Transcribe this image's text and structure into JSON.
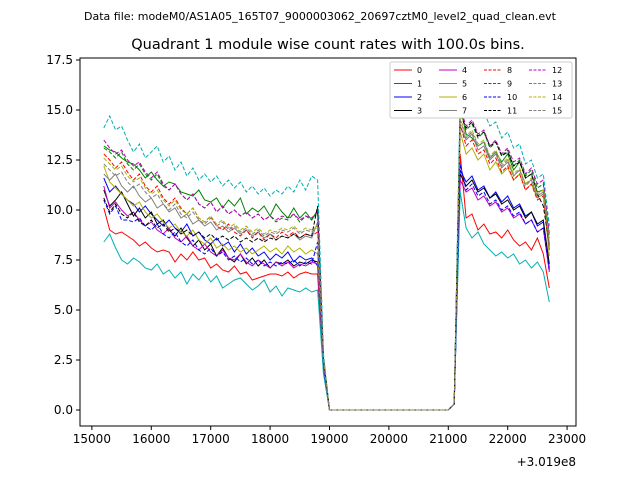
{
  "suptitle": "Data file: modeM0/AS1A05_165T07_9000003062_20697cztM0_level2_quad_clean.evt",
  "chart_data": {
    "type": "line",
    "title": "Quadrant 1 module wise count rates with 100.0s bins.",
    "xlabel": "",
    "ylabel": "",
    "x_offset_label": "+3.019e8",
    "xlim": [
      14800,
      23150
    ],
    "ylim": [
      -0.8,
      17.6
    ],
    "xticks": [
      15000,
      16000,
      17000,
      18000,
      19000,
      20000,
      21000,
      22000,
      23000
    ],
    "xtick_labels": [
      "15000",
      "16000",
      "17000",
      "18000",
      "19000",
      "20000",
      "21000",
      "22000",
      "23000"
    ],
    "yticks": [
      0.0,
      2.5,
      5.0,
      7.5,
      10.0,
      12.5,
      15.0,
      17.5
    ],
    "ytick_labels": [
      "0.0",
      "2.5",
      "5.0",
      "7.5",
      "10.0",
      "12.5",
      "15.0",
      "17.5"
    ],
    "legend_position": "upper-right",
    "segments": {
      "seg1": {
        "x_start": 15200,
        "x_end": 18800,
        "step": 100
      },
      "drop": [
        18900,
        19000
      ],
      "gap": [
        19000,
        21000
      ],
      "rise": [
        21000,
        21100
      ],
      "seg2": {
        "x_start": 21200,
        "x_end": 22700,
        "step": 100
      }
    },
    "series": [
      {
        "name": "0",
        "color": "#ff0000",
        "dash": false,
        "level1": [
          10.1,
          9.0,
          8.8,
          8.9,
          8.7,
          8.5,
          8.2,
          8.4,
          8.1,
          7.9,
          8.0,
          7.9,
          7.4,
          7.8,
          7.5,
          7.9,
          7.5,
          7.6,
          7.1,
          7.3,
          7.0,
          6.9,
          7.2,
          6.8,
          6.9,
          6.5,
          6.6,
          6.7,
          6.8,
          6.8,
          6.7,
          6.9,
          6.6,
          6.8,
          6.9,
          6.8,
          6.8
        ],
        "drop_val": 2.0,
        "level2": [
          12.8,
          9.6,
          9.8,
          9.0,
          9.3,
          8.8,
          8.9,
          8.6,
          9.0,
          8.5,
          8.2,
          8.4,
          8.0,
          8.6,
          7.8,
          6.1
        ]
      },
      {
        "name": "1",
        "color": "#008000",
        "dash": false,
        "level1": [
          13.2,
          13.0,
          12.9,
          12.6,
          12.4,
          12.3,
          12.0,
          11.6,
          11.9,
          11.5,
          11.2,
          11.4,
          11.3,
          10.9,
          10.8,
          10.7,
          11.0,
          10.5,
          10.4,
          10.6,
          10.1,
          10.5,
          10.2,
          10.6,
          9.8,
          10.1,
          9.9,
          10.2,
          9.7,
          10.3,
          9.9,
          9.6,
          10.1,
          9.6,
          9.9,
          9.5,
          10.0
        ],
        "drop_val": 2.6,
        "level2": [
          15.2,
          13.8,
          13.6,
          13.2,
          13.4,
          12.6,
          12.9,
          12.4,
          12.8,
          12.0,
          12.4,
          11.6,
          11.8,
          10.9,
          11.0,
          8.0
        ]
      },
      {
        "name": "2",
        "color": "#0000ff",
        "dash": false,
        "level1": [
          11.6,
          10.9,
          11.2,
          10.8,
          10.5,
          10.3,
          9.9,
          10.2,
          9.8,
          9.5,
          9.2,
          9.5,
          9.1,
          8.9,
          9.3,
          8.7,
          8.9,
          8.5,
          8.3,
          8.6,
          8.2,
          8.4,
          7.9,
          8.3,
          7.8,
          8.1,
          7.7,
          7.9,
          7.5,
          7.8,
          7.6,
          7.9,
          7.4,
          7.7,
          7.5,
          7.6,
          7.2
        ],
        "drop_val": 2.3,
        "level2": [
          12.0,
          11.4,
          11.7,
          11.0,
          11.2,
          10.6,
          10.9,
          10.4,
          10.7,
          10.1,
          10.3,
          9.7,
          9.9,
          9.2,
          9.4,
          7.1
        ]
      },
      {
        "name": "3",
        "color": "#000000",
        "dash": false,
        "level1": [
          11.0,
          10.2,
          10.5,
          10.9,
          10.3,
          9.7,
          10.1,
          9.6,
          9.9,
          9.3,
          9.5,
          9.0,
          8.7,
          9.1,
          8.6,
          8.2,
          8.5,
          8.0,
          8.3,
          7.7,
          8.1,
          7.6,
          7.4,
          7.8,
          7.3,
          7.6,
          7.2,
          7.5,
          7.1,
          7.4,
          7.3,
          7.5,
          7.2,
          7.4,
          7.3,
          7.5,
          7.4
        ],
        "drop_val": 2.2,
        "level2": [
          11.8,
          11.2,
          11.5,
          10.9,
          11.1,
          10.6,
          10.8,
          10.3,
          10.5,
          10.0,
          10.2,
          9.6,
          9.9,
          9.3,
          9.5,
          7.3
        ]
      },
      {
        "name": "4",
        "color": "#c000c0",
        "dash": false,
        "level1": [
          11.2,
          10.1,
          10.4,
          10.0,
          9.7,
          9.9,
          9.5,
          9.2,
          9.4,
          9.0,
          8.8,
          9.1,
          8.6,
          8.4,
          8.7,
          8.2,
          8.0,
          8.3,
          7.9,
          7.7,
          8.0,
          7.6,
          7.5,
          7.8,
          7.4,
          7.2,
          7.5,
          7.3,
          7.1,
          7.4,
          7.2,
          7.4,
          7.1,
          7.3,
          7.2,
          7.4,
          7.3
        ],
        "drop_val": 2.2,
        "level2": [
          11.5,
          10.9,
          11.1,
          10.5,
          10.7,
          10.2,
          10.4,
          9.9,
          10.1,
          9.6,
          9.8,
          9.3,
          9.5,
          8.9,
          9.1,
          6.9
        ]
      },
      {
        "name": "5",
        "color": "#00b0b0",
        "dash": false,
        "level1": [
          8.4,
          8.8,
          8.1,
          7.5,
          7.3,
          7.6,
          7.4,
          7.1,
          7.0,
          7.3,
          6.8,
          7.0,
          6.6,
          6.9,
          6.3,
          6.8,
          6.5,
          6.9,
          6.4,
          6.7,
          6.1,
          6.3,
          6.5,
          6.6,
          6.3,
          6.0,
          6.2,
          6.5,
          5.9,
          6.2,
          5.7,
          6.1,
          6.0,
          5.9,
          6.1,
          5.9,
          6.0
        ],
        "drop_val": 1.8,
        "level2": [
          10.9,
          9.1,
          8.6,
          8.9,
          8.3,
          8.0,
          7.7,
          7.9,
          7.6,
          7.8,
          7.3,
          7.5,
          7.1,
          7.4,
          6.9,
          5.4
        ]
      },
      {
        "name": "6",
        "color": "#b0b000",
        "dash": false,
        "level1": [
          12.2,
          11.4,
          11.1,
          10.8,
          10.5,
          10.2,
          10.4,
          9.9,
          9.6,
          9.8,
          9.4,
          9.1,
          9.3,
          8.9,
          8.7,
          9.0,
          8.5,
          8.3,
          8.6,
          8.1,
          8.3,
          8.0,
          8.2,
          7.9,
          8.1,
          7.8,
          8.0,
          8.2,
          7.9,
          8.1,
          7.8,
          8.2,
          7.9,
          8.1,
          7.8,
          8.0,
          7.8
        ],
        "drop_val": 2.4,
        "level2": [
          13.9,
          12.8,
          13.1,
          12.5,
          12.8,
          12.0,
          12.4,
          11.8,
          12.1,
          11.5,
          11.8,
          11.0,
          11.3,
          10.6,
          10.8,
          7.7
        ]
      },
      {
        "name": "7",
        "color": "#808080",
        "dash": false,
        "level1": [
          11.8,
          11.5,
          11.8,
          11.2,
          10.9,
          11.2,
          10.7,
          10.4,
          10.6,
          10.1,
          10.3,
          9.9,
          10.1,
          9.6,
          9.8,
          9.3,
          9.5,
          9.2,
          9.4,
          9.0,
          9.2,
          8.9,
          9.1,
          8.8,
          9.0,
          8.7,
          8.9,
          8.6,
          8.8,
          8.5,
          8.7,
          8.6,
          8.8,
          8.5,
          8.7,
          8.6,
          9.4
        ],
        "drop_val": 2.5,
        "level2": [
          14.2,
          13.5,
          13.8,
          13.0,
          13.2,
          12.5,
          12.8,
          12.1,
          12.4,
          11.7,
          12.0,
          11.3,
          11.5,
          10.7,
          10.9,
          8.1
        ]
      },
      {
        "name": "8",
        "color": "#ff0000",
        "dash": true,
        "level1": [
          12.8,
          12.5,
          12.1,
          12.4,
          11.9,
          11.5,
          11.8,
          11.2,
          10.9,
          11.2,
          10.6,
          10.3,
          10.6,
          10.1,
          9.8,
          10.1,
          9.6,
          9.4,
          9.7,
          9.2,
          9.0,
          9.3,
          8.9,
          8.7,
          9.0,
          8.6,
          8.9,
          8.5,
          8.8,
          8.6,
          8.9,
          8.7,
          8.9,
          8.6,
          8.8,
          8.7,
          8.9
        ],
        "drop_val": 2.5,
        "level2": [
          14.3,
          13.2,
          13.5,
          12.8,
          13.0,
          12.3,
          12.6,
          11.9,
          12.2,
          11.5,
          11.8,
          11.0,
          11.3,
          10.5,
          10.7,
          8.2
        ]
      },
      {
        "name": "9",
        "color": "#008000",
        "dash": true,
        "level1": [
          13.1,
          12.9,
          12.6,
          12.9,
          12.3,
          12.0,
          12.3,
          11.8,
          11.5,
          11.8,
          11.2,
          11.0,
          11.3,
          10.8,
          10.5,
          10.8,
          10.3,
          10.1,
          10.4,
          9.9,
          10.2,
          9.8,
          10.0,
          9.7,
          9.9,
          9.6,
          9.8,
          9.5,
          9.7,
          9.4,
          9.6,
          9.5,
          9.8,
          9.4,
          9.7,
          9.5,
          9.9
        ],
        "drop_val": 2.6,
        "level2": [
          15.0,
          14.0,
          14.3,
          13.6,
          13.9,
          13.1,
          13.4,
          12.7,
          13.0,
          12.2,
          12.5,
          11.7,
          12.0,
          11.1,
          11.3,
          8.6
        ]
      },
      {
        "name": "10",
        "color": "#0000ff",
        "dash": true,
        "level1": [
          10.5,
          9.8,
          10.2,
          9.5,
          9.5,
          9.4,
          9.6,
          9.2,
          9.0,
          9.3,
          8.8,
          8.6,
          8.9,
          8.4,
          8.2,
          8.5,
          8.0,
          7.8,
          8.1,
          7.7,
          7.9,
          7.5,
          7.7,
          7.4,
          7.6,
          7.3,
          7.5,
          7.2,
          7.4,
          7.2,
          7.4,
          7.3,
          7.5,
          7.2,
          7.4,
          7.3,
          8.4
        ],
        "drop_val": 2.2,
        "level2": [
          12.3,
          11.0,
          11.3,
          10.7,
          10.9,
          10.3,
          10.5,
          10.0,
          10.2,
          9.7,
          9.9,
          9.3,
          9.5,
          8.9,
          9.1,
          7.0
        ]
      },
      {
        "name": "11",
        "color": "#000000",
        "dash": true,
        "level1": [
          10.6,
          9.9,
          10.3,
          9.8,
          9.6,
          9.9,
          9.4,
          9.2,
          9.5,
          9.1,
          9.3,
          8.9,
          9.1,
          8.8,
          9.0,
          8.7,
          8.9,
          8.6,
          8.8,
          8.5,
          8.7,
          8.5,
          8.7,
          8.4,
          8.6,
          8.4,
          8.6,
          8.4,
          8.6,
          8.5,
          8.7,
          8.6,
          8.8,
          8.6,
          8.8,
          8.7,
          10.2
        ],
        "drop_val": 2.5,
        "level2": [
          14.8,
          14.1,
          14.4,
          13.7,
          13.9,
          13.2,
          13.4,
          12.7,
          12.9,
          12.2,
          12.4,
          11.6,
          11.8,
          10.8,
          10.2,
          8.3
        ]
      },
      {
        "name": "12",
        "color": "#c000c0",
        "dash": true,
        "level1": [
          13.5,
          13.1,
          12.8,
          13.0,
          12.5,
          12.2,
          12.4,
          11.9,
          11.6,
          11.9,
          11.3,
          11.0,
          11.3,
          10.8,
          10.5,
          10.8,
          10.3,
          10.1,
          10.4,
          9.9,
          10.2,
          9.8,
          10.0,
          9.7,
          9.9,
          9.6,
          9.8,
          9.5,
          9.7,
          9.5,
          9.7,
          9.6,
          9.8,
          9.5,
          9.7,
          9.6,
          9.9
        ],
        "drop_val": 2.6,
        "level2": [
          15.1,
          14.2,
          14.5,
          13.8,
          14.0,
          13.2,
          13.5,
          12.8,
          13.1,
          12.4,
          12.6,
          11.8,
          12.1,
          11.3,
          11.5,
          8.8
        ]
      },
      {
        "name": "13",
        "color": "#00b0b0",
        "dash": true,
        "level1": [
          14.1,
          14.7,
          14.0,
          14.2,
          13.5,
          12.9,
          13.3,
          12.6,
          12.9,
          13.2,
          12.4,
          12.7,
          12.0,
          12.4,
          11.7,
          12.1,
          11.5,
          11.8,
          11.4,
          11.7,
          11.2,
          11.5,
          11.1,
          11.4,
          10.9,
          11.2,
          10.8,
          11.1,
          10.7,
          11.0,
          10.8,
          11.2,
          10.9,
          11.5,
          11.0,
          11.7,
          11.5
        ],
        "drop_val": 2.8,
        "level2": [
          15.9,
          15.0,
          15.2,
          14.6,
          14.9,
          14.2,
          14.4,
          13.6,
          13.9,
          13.1,
          13.3,
          12.3,
          12.5,
          11.6,
          11.8,
          9.2
        ]
      },
      {
        "name": "14",
        "color": "#b0b000",
        "dash": true,
        "level1": [
          12.6,
          12.3,
          12.0,
          12.2,
          11.7,
          11.4,
          11.6,
          11.1,
          10.8,
          11.0,
          10.5,
          10.2,
          10.5,
          10.0,
          9.8,
          10.1,
          9.6,
          9.4,
          9.7,
          9.3,
          9.5,
          9.1,
          9.3,
          9.0,
          9.2,
          8.9,
          9.1,
          8.8,
          9.0,
          8.9,
          9.1,
          9.0,
          9.2,
          8.9,
          9.1,
          9.0,
          9.2
        ],
        "drop_val": 2.5,
        "level2": [
          14.6,
          13.7,
          14.0,
          13.3,
          13.5,
          12.7,
          13.0,
          12.3,
          12.6,
          11.8,
          12.1,
          11.3,
          11.6,
          10.8,
          11.0,
          8.4
        ]
      },
      {
        "name": "15",
        "color": "#808080",
        "dash": true,
        "level1": [
          12.3,
          12.0,
          11.7,
          11.9,
          11.4,
          11.1,
          11.3,
          10.9,
          10.6,
          10.8,
          10.3,
          10.0,
          10.3,
          9.8,
          9.6,
          9.9,
          9.5,
          9.3,
          9.6,
          9.2,
          9.4,
          9.0,
          9.2,
          8.9,
          9.1,
          8.8,
          9.0,
          8.7,
          8.9,
          8.8,
          9.0,
          8.9,
          9.1,
          8.8,
          9.0,
          8.9,
          9.1
        ],
        "drop_val": 2.4,
        "level2": [
          14.5,
          13.6,
          13.9,
          13.2,
          13.4,
          12.6,
          12.9,
          12.2,
          12.5,
          11.7,
          12.0,
          11.2,
          11.5,
          10.6,
          10.8,
          8.3
        ]
      }
    ]
  }
}
